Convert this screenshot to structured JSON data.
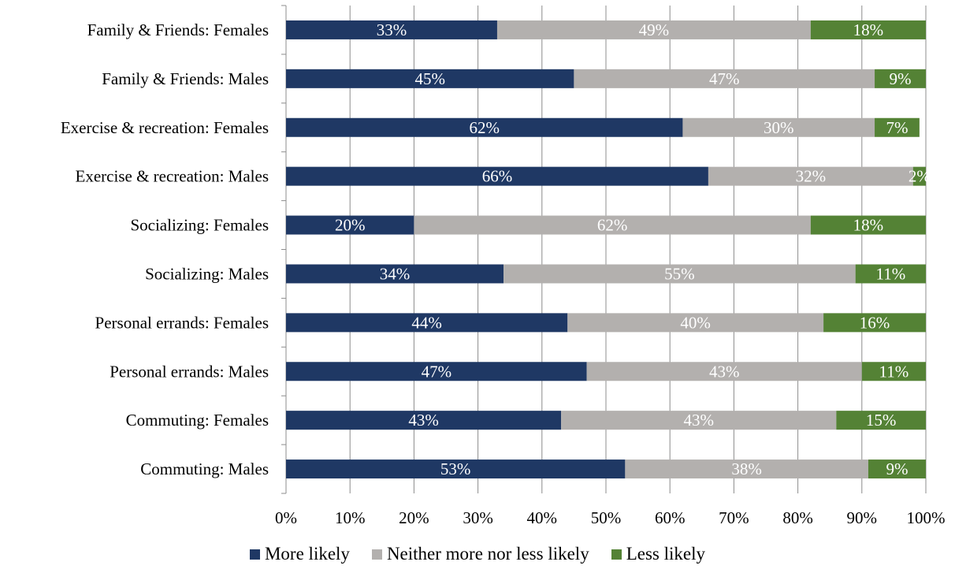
{
  "chart_data": {
    "type": "bar",
    "orientation": "horizontal",
    "stacked": true,
    "title": "",
    "xlabel": "",
    "ylabel": "",
    "xlim": [
      0,
      100
    ],
    "x_ticks": [
      "0%",
      "10%",
      "20%",
      "30%",
      "40%",
      "50%",
      "60%",
      "70%",
      "80%",
      "90%",
      "100%"
    ],
    "grid": "vertical",
    "legend_position": "bottom",
    "categories": [
      "Family & Friends: Females",
      "Family & Friends: Males",
      "Exercise & recreation: Females",
      "Exercise & recreation: Males",
      "Socializing: Females",
      "Socializing: Males",
      "Personal errands: Females",
      "Personal errands: Males",
      "Commuting: Females",
      "Commuting: Males"
    ],
    "series": [
      {
        "name": "More likely",
        "color": "#1f3864",
        "values": [
          33,
          45,
          62,
          66,
          20,
          34,
          44,
          47,
          43,
          53
        ],
        "labels": [
          "33%",
          "45%",
          "62%",
          "66%",
          "20%",
          "34%",
          "44%",
          "47%",
          "43%",
          "53%"
        ]
      },
      {
        "name": "Neither more nor less likely",
        "color": "#b3b0ae",
        "values": [
          49,
          47,
          30,
          32,
          62,
          55,
          40,
          43,
          43,
          38
        ],
        "labels": [
          "49%",
          "47%",
          "30%",
          "32%",
          "62%",
          "55%",
          "40%",
          "43%",
          "43%",
          "38%"
        ]
      },
      {
        "name": "Less likely",
        "color": "#548235",
        "values": [
          18,
          9,
          7,
          2,
          18,
          11,
          16,
          11,
          15,
          9
        ],
        "labels": [
          "18%",
          "9%",
          "7%",
          "2%",
          "18%",
          "11%",
          "16%",
          "11%",
          "15%",
          "9%"
        ]
      }
    ]
  }
}
